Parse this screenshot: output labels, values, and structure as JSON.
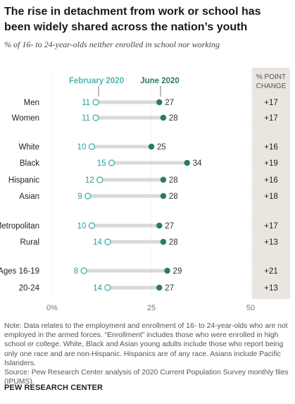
{
  "title": "The rise in detachment from work or school has been widely shared across the nation’s youth",
  "subtitle": "% of 16- to 24-year-olds neither enrolled in school nor working",
  "legend": {
    "feb": "February 2020",
    "jun": "June 2020"
  },
  "change_header": [
    "% POINT",
    "CHANGE"
  ],
  "colors": {
    "feb": "#4db6ac",
    "jun": "#2a7a65",
    "bar": "#d9d9d9",
    "change_bg": "#e8e6df",
    "label": "#2a9d8f"
  },
  "chart_data": {
    "type": "dot",
    "xlim": [
      0,
      50
    ],
    "ticks": [
      "0%",
      "25",
      "50"
    ],
    "series": [
      {
        "name": "February 2020",
        "values": [
          11,
          11,
          10,
          15,
          12,
          9,
          10,
          14,
          8,
          14
        ]
      },
      {
        "name": "June 2020",
        "values": [
          27,
          28,
          25,
          34,
          28,
          28,
          27,
          28,
          29,
          27
        ]
      }
    ],
    "categories": [
      "Men",
      "Women",
      "White",
      "Black",
      "Hispanic",
      "Asian",
      "Metropolitan",
      "Rural",
      "Ages 16-19",
      "20-24"
    ],
    "change": [
      "+17",
      "+17",
      "+16",
      "+19",
      "+16",
      "+18",
      "+17",
      "+13",
      "+21",
      "+13"
    ]
  },
  "note": "Note: Data relates to the employment and enrollment of 16- to 24-year-olds who are not employed in the armed forces. “Enrollment” includes those who were enrolled in high school or college. White, Black and Asian young adults include those who report being only one race and are non-Hispanic. Hispanics are of any race. Asians include Pacific Islanders.",
  "source": "Source: Pew Research Center analysis of 2020 Current Population Survey monthly files (IPUMS).",
  "footer": "PEW RESEARCH CENTER"
}
